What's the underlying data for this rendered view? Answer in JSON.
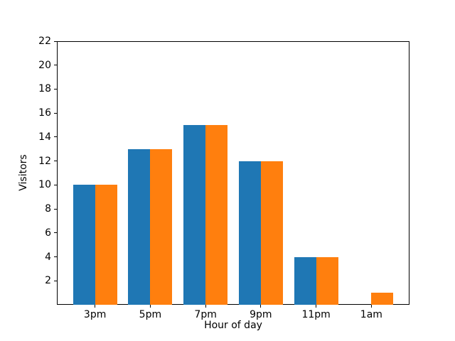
{
  "chart_data": {
    "type": "bar",
    "title": "",
    "xlabel": "Hour of day",
    "ylabel": "Visitors",
    "categories": [
      "3pm",
      "5pm",
      "7pm",
      "9pm",
      "11pm",
      "1am"
    ],
    "series": [
      {
        "name": "blue",
        "color": "#1f77b4",
        "values": [
          10,
          13,
          15,
          12,
          4,
          0
        ]
      },
      {
        "name": "orange",
        "color": "#ff7f0e",
        "values": [
          10,
          13,
          15,
          12,
          4,
          1
        ]
      }
    ],
    "ylim": [
      0,
      22
    ],
    "yticks": [
      2,
      4,
      6,
      8,
      10,
      12,
      14,
      16,
      18,
      20,
      22
    ],
    "grid": false,
    "legend": "none",
    "background_color": "#ffffff",
    "axis_color": "#000000"
  }
}
